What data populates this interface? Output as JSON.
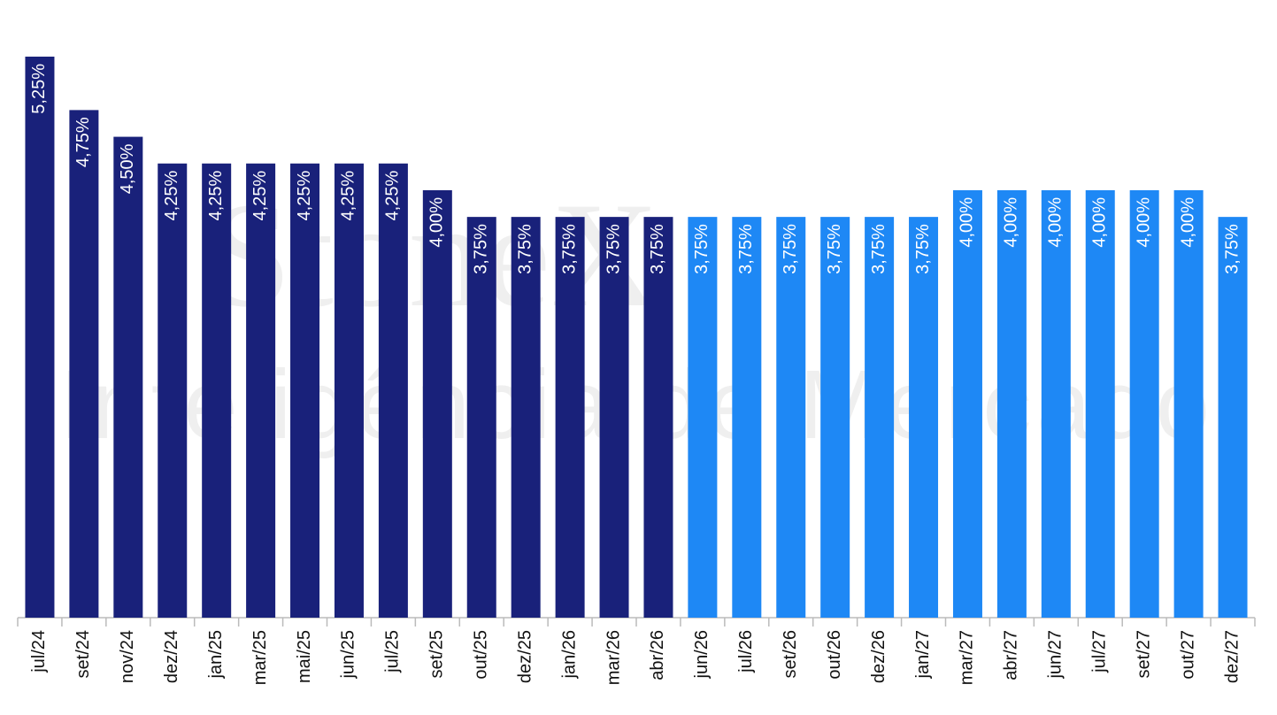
{
  "chart_data": {
    "type": "bar",
    "watermark": [
      "StoneX",
      "Inteligência de Mercado"
    ],
    "categories": [
      "jul/24",
      "set/24",
      "nov/24",
      "dez/24",
      "jan/25",
      "mar/25",
      "mai/25",
      "jun/25",
      "jul/25",
      "set/25",
      "out/25",
      "dez/25",
      "jan/26",
      "mar/26",
      "abr/26",
      "jun/26",
      "jul/26",
      "set/26",
      "out/26",
      "dez/26",
      "jan/27",
      "mar/27",
      "abr/27",
      "jun/27",
      "jul/27",
      "set/27",
      "out/27",
      "dez/27"
    ],
    "values": [
      5.25,
      4.75,
      4.5,
      4.25,
      4.25,
      4.25,
      4.25,
      4.25,
      4.25,
      4.0,
      3.75,
      3.75,
      3.75,
      3.75,
      3.75,
      3.75,
      3.75,
      3.75,
      3.75,
      3.75,
      3.75,
      4.0,
      4.0,
      4.0,
      4.0,
      4.0,
      4.0,
      3.75
    ],
    "value_labels": [
      "5,25%",
      "4,75%",
      "4,50%",
      "4,25%",
      "4,25%",
      "4,25%",
      "4,25%",
      "4,25%",
      "4,25%",
      "4,00%",
      "3,75%",
      "3,75%",
      "3,75%",
      "3,75%",
      "3,75%",
      "3,75%",
      "3,75%",
      "3,75%",
      "3,75%",
      "3,75%",
      "3,75%",
      "4,00%",
      "4,00%",
      "4,00%",
      "4,00%",
      "4,00%",
      "4,00%",
      "3,75%"
    ],
    "colors": [
      "#19217a",
      "#19217a",
      "#19217a",
      "#19217a",
      "#19217a",
      "#19217a",
      "#19217a",
      "#19217a",
      "#19217a",
      "#19217a",
      "#19217a",
      "#19217a",
      "#19217a",
      "#19217a",
      "#19217a",
      "#1e88f5",
      "#1e88f5",
      "#1e88f5",
      "#1e88f5",
      "#1e88f5",
      "#1e88f5",
      "#1e88f5",
      "#1e88f5",
      "#1e88f5",
      "#1e88f5",
      "#1e88f5",
      "#1e88f5",
      "#1e88f5"
    ],
    "ylim": [
      0,
      5.25
    ]
  }
}
